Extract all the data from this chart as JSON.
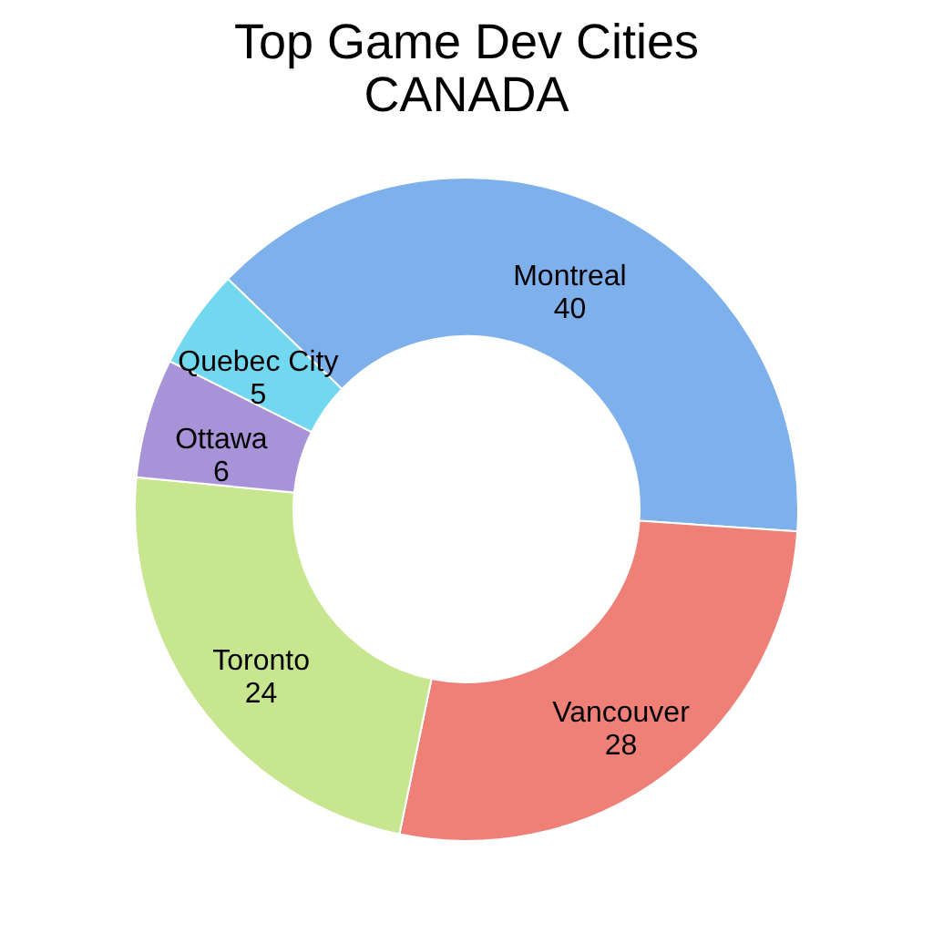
{
  "chart_data": {
    "type": "donut",
    "title": "Top Game Dev Cities\nCANADA",
    "categories": [
      "Montreal",
      "Vancouver",
      "Toronto",
      "Ottawa",
      "Quebec City"
    ],
    "values": [
      40,
      28,
      24,
      6,
      5
    ],
    "colors": [
      "#7eb0ec",
      "#ef8078",
      "#c8e690",
      "#a892d8",
      "#72d8ef"
    ],
    "data_labels": true,
    "legend": false
  }
}
